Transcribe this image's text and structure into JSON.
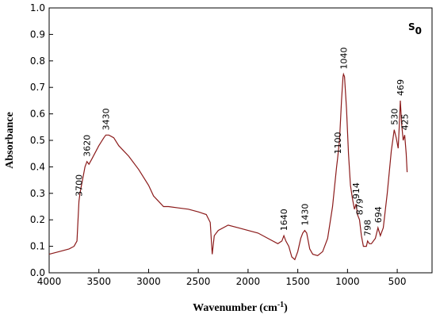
{
  "chart_data": {
    "type": "line",
    "xlabel": {
      "text": "Wavenumber (cm",
      "sup": "-1",
      "tail": ")"
    },
    "ylabel": "Absorbance",
    "annotation": {
      "text": "S",
      "sub": "0"
    },
    "xlim": [
      4000,
      150
    ],
    "ylim": [
      0,
      1
    ],
    "xticks": [
      4000,
      3500,
      3000,
      2500,
      2000,
      1500,
      1000,
      500
    ],
    "yticks": [
      {
        "value": 0,
        "label": "0.0"
      },
      {
        "value": 0.1,
        "label": "0.1"
      },
      {
        "value": 0.2,
        "label": "0.2"
      },
      {
        "value": 0.3,
        "label": "0.3"
      },
      {
        "value": 0.4,
        "label": "0.4"
      },
      {
        "value": 0.5,
        "label": "0.5"
      },
      {
        "value": 0.6,
        "label": "0.6"
      },
      {
        "value": 0.7,
        "label": "0.7"
      },
      {
        "value": 0.8,
        "label": "0.8"
      },
      {
        "value": 0.9,
        "label": "0.9"
      },
      {
        "value": 1,
        "label": "1.0"
      }
    ],
    "peaks": [
      3700,
      3620,
      3430,
      1640,
      1430,
      1100,
      1040,
      914,
      879,
      798,
      694,
      530,
      469,
      425
    ],
    "x": [
      4000,
      3900,
      3800,
      3750,
      3720,
      3700,
      3690,
      3680,
      3660,
      3640,
      3620,
      3600,
      3570,
      3500,
      3450,
      3430,
      3400,
      3350,
      3300,
      3200,
      3100,
      3000,
      2950,
      2900,
      2850,
      2800,
      2700,
      2600,
      2500,
      2420,
      2380,
      2360,
      2340,
      2300,
      2200,
      2100,
      2000,
      1900,
      1800,
      1700,
      1660,
      1640,
      1620,
      1590,
      1560,
      1530,
      1500,
      1470,
      1450,
      1430,
      1410,
      1380,
      1350,
      1300,
      1250,
      1200,
      1150,
      1110,
      1100,
      1080,
      1060,
      1045,
      1040,
      1030,
      1010,
      990,
      970,
      950,
      930,
      914,
      900,
      879,
      860,
      840,
      810,
      798,
      780,
      760,
      720,
      694,
      670,
      640,
      600,
      560,
      530,
      510,
      490,
      480,
      469,
      455,
      440,
      425,
      410,
      400
    ],
    "series": [
      {
        "color": "#8b1a1a",
        "values": [
          0.07,
          0.08,
          0.09,
          0.1,
          0.12,
          0.27,
          0.3,
          0.32,
          0.36,
          0.4,
          0.42,
          0.41,
          0.43,
          0.48,
          0.51,
          0.52,
          0.52,
          0.51,
          0.48,
          0.44,
          0.39,
          0.33,
          0.29,
          0.27,
          0.25,
          0.25,
          0.245,
          0.24,
          0.23,
          0.22,
          0.19,
          0.07,
          0.14,
          0.16,
          0.18,
          0.17,
          0.16,
          0.15,
          0.13,
          0.11,
          0.12,
          0.14,
          0.12,
          0.1,
          0.06,
          0.05,
          0.08,
          0.13,
          0.15,
          0.16,
          0.15,
          0.09,
          0.07,
          0.065,
          0.08,
          0.13,
          0.25,
          0.4,
          0.43,
          0.5,
          0.65,
          0.74,
          0.75,
          0.74,
          0.62,
          0.45,
          0.33,
          0.28,
          0.24,
          0.26,
          0.22,
          0.2,
          0.14,
          0.1,
          0.1,
          0.12,
          0.11,
          0.11,
          0.13,
          0.17,
          0.14,
          0.17,
          0.3,
          0.46,
          0.54,
          0.51,
          0.47,
          0.55,
          0.65,
          0.56,
          0.5,
          0.52,
          0.45,
          0.38
        ]
      }
    ]
  }
}
